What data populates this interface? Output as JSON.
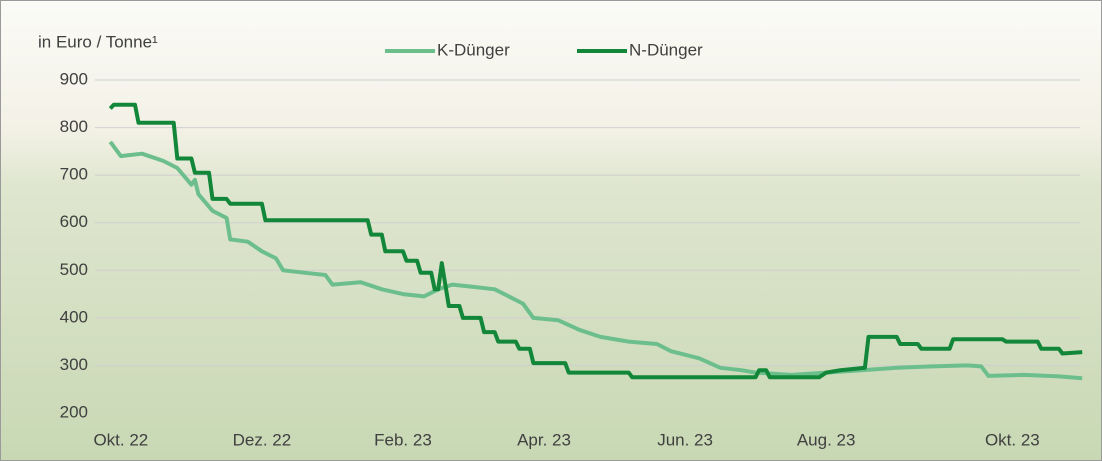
{
  "chart_data": {
    "type": "line",
    "y_label": "in Euro / Tonne¹",
    "xlim": [
      -0.65,
      13.67
    ],
    "xticks": [
      {
        "value": 0,
        "label": "Okt. 22"
      },
      {
        "value": 2,
        "label": "Dez. 22"
      },
      {
        "value": 4,
        "label": "Feb. 23"
      },
      {
        "value": 6,
        "label": "Apr. 23"
      },
      {
        "value": 8,
        "label": "Jun. 23"
      },
      {
        "value": 10,
        "label": "Aug. 23"
      },
      {
        "value": 12.64,
        "label": "Okt. 23"
      }
    ],
    "ylim": [
      200,
      900
    ],
    "yticks": [
      200,
      300,
      400,
      500,
      600,
      700,
      800,
      900
    ],
    "grid": true,
    "legend": "top",
    "series": [
      {
        "name": "K-Dünger",
        "color": "#6cbf8c",
        "x": [
          -0.15,
          0,
          0.3,
          0.6,
          0.8,
          1.0,
          1.05,
          1.1,
          1.3,
          1.5,
          1.55,
          1.8,
          2.0,
          2.2,
          2.3,
          2.6,
          2.9,
          3.0,
          3.4,
          3.7,
          4.0,
          4.3,
          4.5,
          4.7,
          5.0,
          5.3,
          5.5,
          5.7,
          5.85,
          6.2,
          6.5,
          6.8,
          7.2,
          7.6,
          7.8,
          8.2,
          8.5,
          8.8,
          9.0,
          9.5,
          10.0,
          10.5,
          11.0,
          11.5,
          12.0,
          12.2,
          12.3,
          12.8,
          13.3,
          13.63
        ],
        "values": [
          770,
          740,
          745,
          730,
          715,
          680,
          690,
          660,
          625,
          610,
          565,
          560,
          540,
          525,
          500,
          495,
          490,
          470,
          475,
          460,
          450,
          445,
          460,
          470,
          465,
          460,
          445,
          430,
          400,
          395,
          375,
          360,
          350,
          345,
          330,
          315,
          295,
          290,
          285,
          280,
          285,
          290,
          295,
          298,
          300,
          298,
          278,
          280,
          277,
          273
        ]
      },
      {
        "name": "N-Dünger",
        "color": "#12873a",
        "x": [
          -0.15,
          -0.1,
          0.2,
          0.25,
          0.75,
          0.8,
          1.0,
          1.05,
          1.25,
          1.3,
          1.5,
          1.55,
          2.0,
          2.05,
          3.5,
          3.55,
          3.7,
          3.75,
          4.0,
          4.05,
          4.2,
          4.25,
          4.4,
          4.45,
          4.5,
          4.55,
          4.6,
          4.65,
          4.8,
          4.85,
          5.1,
          5.15,
          5.3,
          5.35,
          5.6,
          5.65,
          5.8,
          5.85,
          6.3,
          6.35,
          7.2,
          7.25,
          9.0,
          9.05,
          9.15,
          9.2,
          9.9,
          10.0,
          10.2,
          10.55,
          10.6,
          11.0,
          11.05,
          11.3,
          11.35,
          11.75,
          11.8,
          12.5,
          12.55,
          13.0,
          13.05,
          13.3,
          13.35,
          13.63
        ],
        "values": [
          840,
          848,
          848,
          810,
          810,
          735,
          735,
          705,
          705,
          650,
          650,
          640,
          640,
          605,
          605,
          575,
          575,
          540,
          540,
          520,
          520,
          495,
          495,
          460,
          460,
          515,
          470,
          425,
          425,
          400,
          400,
          370,
          370,
          350,
          350,
          335,
          335,
          305,
          305,
          285,
          285,
          275,
          275,
          290,
          290,
          275,
          275,
          285,
          290,
          295,
          360,
          360,
          345,
          345,
          335,
          335,
          355,
          355,
          350,
          350,
          335,
          335,
          325,
          328
        ]
      }
    ]
  }
}
